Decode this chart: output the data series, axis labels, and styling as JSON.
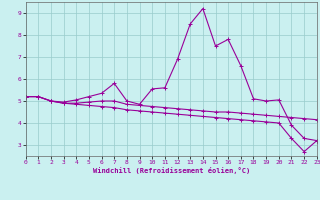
{
  "xlabel": "Windchill (Refroidissement éolien,°C)",
  "background_color": "#caf0f0",
  "grid_color": "#99cccc",
  "line_color": "#990099",
  "x": [
    0,
    1,
    2,
    3,
    4,
    5,
    6,
    7,
    8,
    9,
    10,
    11,
    12,
    13,
    14,
    15,
    16,
    17,
    18,
    19,
    20,
    21,
    22,
    23
  ],
  "series1": [
    5.2,
    5.2,
    5.0,
    4.95,
    5.05,
    5.2,
    5.35,
    5.8,
    5.0,
    4.85,
    5.55,
    5.6,
    6.9,
    8.5,
    9.2,
    7.5,
    7.8,
    6.6,
    5.1,
    5.0,
    5.05,
    3.9,
    3.3,
    3.2
  ],
  "series2": [
    5.2,
    5.2,
    5.0,
    4.9,
    4.9,
    4.95,
    5.0,
    5.0,
    4.85,
    4.8,
    4.75,
    4.7,
    4.65,
    4.6,
    4.55,
    4.5,
    4.5,
    4.45,
    4.4,
    4.35,
    4.3,
    4.25,
    4.2,
    4.15
  ],
  "series3": [
    5.2,
    5.2,
    5.0,
    4.9,
    4.85,
    4.8,
    4.75,
    4.7,
    4.6,
    4.55,
    4.5,
    4.45,
    4.4,
    4.35,
    4.3,
    4.25,
    4.2,
    4.15,
    4.1,
    4.05,
    4.0,
    3.3,
    2.7,
    3.2
  ],
  "ylim": [
    2.5,
    9.5
  ],
  "xlim": [
    0,
    23
  ],
  "yticks": [
    3,
    4,
    5,
    6,
    7,
    8,
    9
  ],
  "xticks": [
    0,
    1,
    2,
    3,
    4,
    5,
    6,
    7,
    8,
    9,
    10,
    11,
    12,
    13,
    14,
    15,
    16,
    17,
    18,
    19,
    20,
    21,
    22,
    23
  ]
}
